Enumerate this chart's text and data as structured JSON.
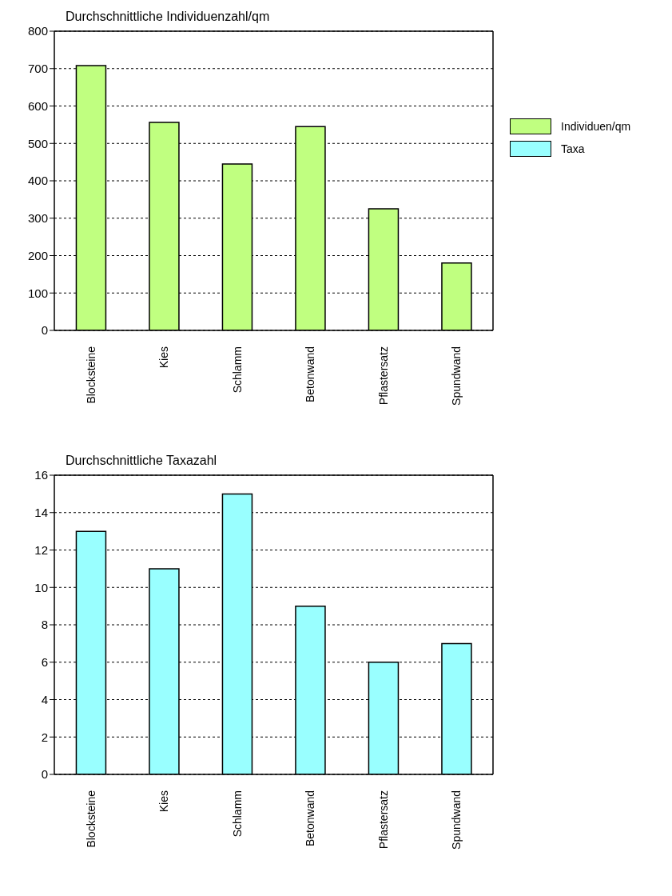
{
  "chart_data": [
    {
      "type": "bar",
      "title": "Durchschnittliche Individuenzahl/qm",
      "categories": [
        "Blocksteine",
        "Kies",
        "Schlamm",
        "Betonwand",
        "Pflastersatz",
        "Spundwand"
      ],
      "series": [
        {
          "name": "Individuen/qm",
          "color": "#c0ff80",
          "values": [
            708,
            556,
            445,
            545,
            325,
            180
          ]
        }
      ],
      "ylim": [
        0,
        800
      ],
      "yticks": [
        0,
        100,
        200,
        300,
        400,
        500,
        600,
        700,
        800
      ],
      "grid": "y",
      "legend": "right"
    },
    {
      "type": "bar",
      "title": "Durchschnittliche Taxazahl",
      "categories": [
        "Blocksteine",
        "Kies",
        "Schlamm",
        "Betonwand",
        "Pflastersatz",
        "Spundwand"
      ],
      "series": [
        {
          "name": "Taxa",
          "color": "#99ffff",
          "values": [
            13,
            11,
            15,
            9,
            6,
            7
          ]
        }
      ],
      "ylim": [
        0,
        16
      ],
      "yticks": [
        0,
        2,
        4,
        6,
        8,
        10,
        12,
        14,
        16
      ],
      "grid": "y",
      "legend": "right"
    }
  ]
}
